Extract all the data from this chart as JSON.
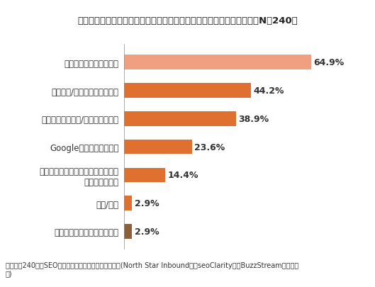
{
  "title": "モニタリングしている中で、もっとも注視している順位要素は何か？（N＝240）",
  "categories": [
    "プロダクトリスティング広告",
    "画像/動画",
    "リスティングとオーガニック検索の\nオーバーラップ",
    "Googleアンサーボックス",
    "モバイルスピード/レスポンシブ化",
    "ローカル/地域関連キーワード",
    "全国レベルのキーワード"
  ],
  "values": [
    2.9,
    2.9,
    14.4,
    23.6,
    38.9,
    44.2,
    64.9
  ],
  "bar_colors": [
    "#8B5E3C",
    "#E07030",
    "#E07030",
    "#E07030",
    "#E07030",
    "#E07030",
    "#F0A080"
  ],
  "value_labels": [
    "2.9%",
    "2.9%",
    "14.4%",
    "23.6%",
    "38.9%",
    "44.2%",
    "64.9%"
  ],
  "title_bg_color": "#CBE0EA",
  "footer_bg_color": "#D0DDE5",
  "footer_text": "ソース：240名のSEOプロフェッショナルに対する調査(North Star Inbound社、seoClarity社、BuzzStream社にて実\n施)",
  "xlim": [
    0,
    78
  ],
  "title_fontsize": 9.5,
  "label_fontsize": 8.5,
  "value_fontsize": 9,
  "footer_fontsize": 7,
  "bar_height": 0.52,
  "bg_color": "#FFFFFF"
}
